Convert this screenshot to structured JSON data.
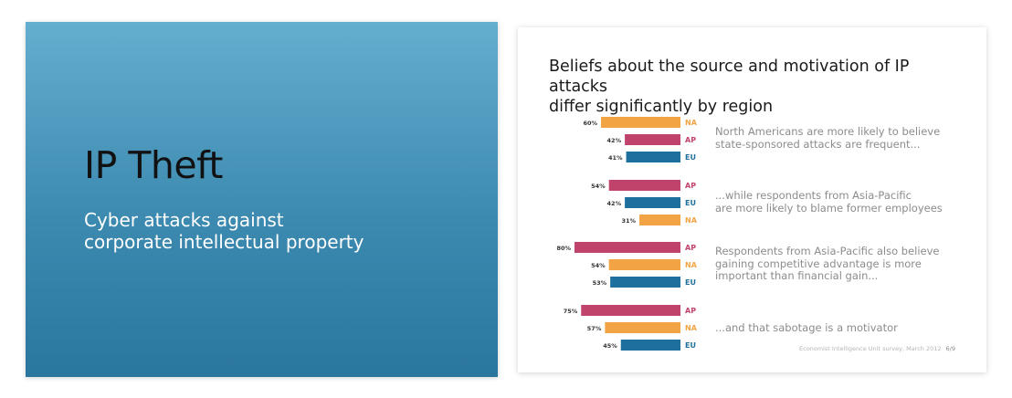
{
  "left_slide": {
    "title": "IP Theft",
    "subtitle_line1": "Cyber attacks against",
    "subtitle_line2": "corporate intellectual property"
  },
  "right_slide": {
    "title_line1": "Beliefs about the source and motivation of IP attacks",
    "title_line2": "differ significantly by region",
    "annotations": [
      {
        "line1": "North Americans are more likely to believe",
        "line2": "state-sponsored attacks are frequent..."
      },
      {
        "line1": "...while respondents from Asia-Pacific",
        "line2": "are more likely to blame former employees"
      },
      {
        "line1": "Respondents from Asia-Pacific also believe",
        "line2": "gaining competitive advantage is more",
        "line3": "important than financial gain..."
      },
      {
        "line1": "...and that sabotage is a motivator"
      }
    ],
    "source": "Economist Intelligence Unit survey, March 2012",
    "page": "6/9"
  },
  "colors": {
    "NA": "#f2a444",
    "AP": "#c0436b",
    "EU": "#1f6f9e"
  },
  "chart_data": {
    "type": "bar",
    "orientation": "horizontal",
    "units": "%",
    "groups": [
      {
        "bars": [
          {
            "region": "NA",
            "value": 60
          },
          {
            "region": "AP",
            "value": 42
          },
          {
            "region": "EU",
            "value": 41
          }
        ]
      },
      {
        "bars": [
          {
            "region": "AP",
            "value": 54
          },
          {
            "region": "EU",
            "value": 42
          },
          {
            "region": "NA",
            "value": 31
          }
        ]
      },
      {
        "bars": [
          {
            "region": "AP",
            "value": 80
          },
          {
            "region": "NA",
            "value": 54
          },
          {
            "region": "EU",
            "value": 53
          }
        ]
      },
      {
        "bars": [
          {
            "region": "AP",
            "value": 75
          },
          {
            "region": "NA",
            "value": 57
          },
          {
            "region": "EU",
            "value": 45
          }
        ]
      }
    ]
  }
}
